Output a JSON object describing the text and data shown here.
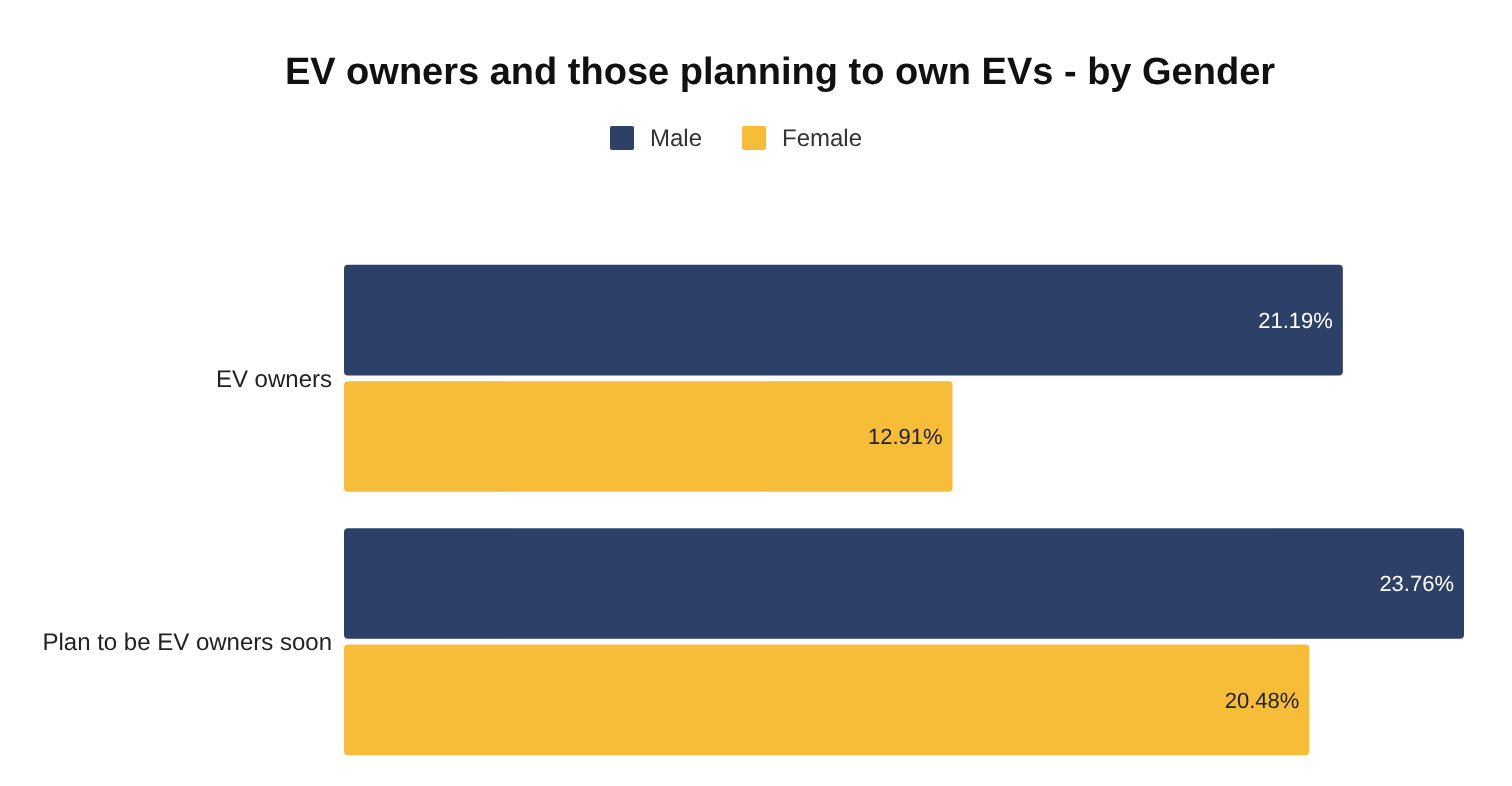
{
  "chart_data": {
    "type": "bar",
    "orientation": "horizontal",
    "title": "EV owners and those planning to own EVs - by Gender",
    "categories": [
      "EV owners",
      "Plan to be EV owners soon"
    ],
    "series": [
      {
        "name": "Male",
        "color": "#2d4068",
        "values": [
          21.19,
          23.76
        ],
        "value_labels": [
          "21.19%",
          "23.76%"
        ]
      },
      {
        "name": "Female",
        "color": "#f7bc38",
        "values": [
          12.91,
          20.48
        ],
        "value_labels": [
          "12.91%",
          "20.48%"
        ]
      }
    ],
    "legend": "top"
  }
}
